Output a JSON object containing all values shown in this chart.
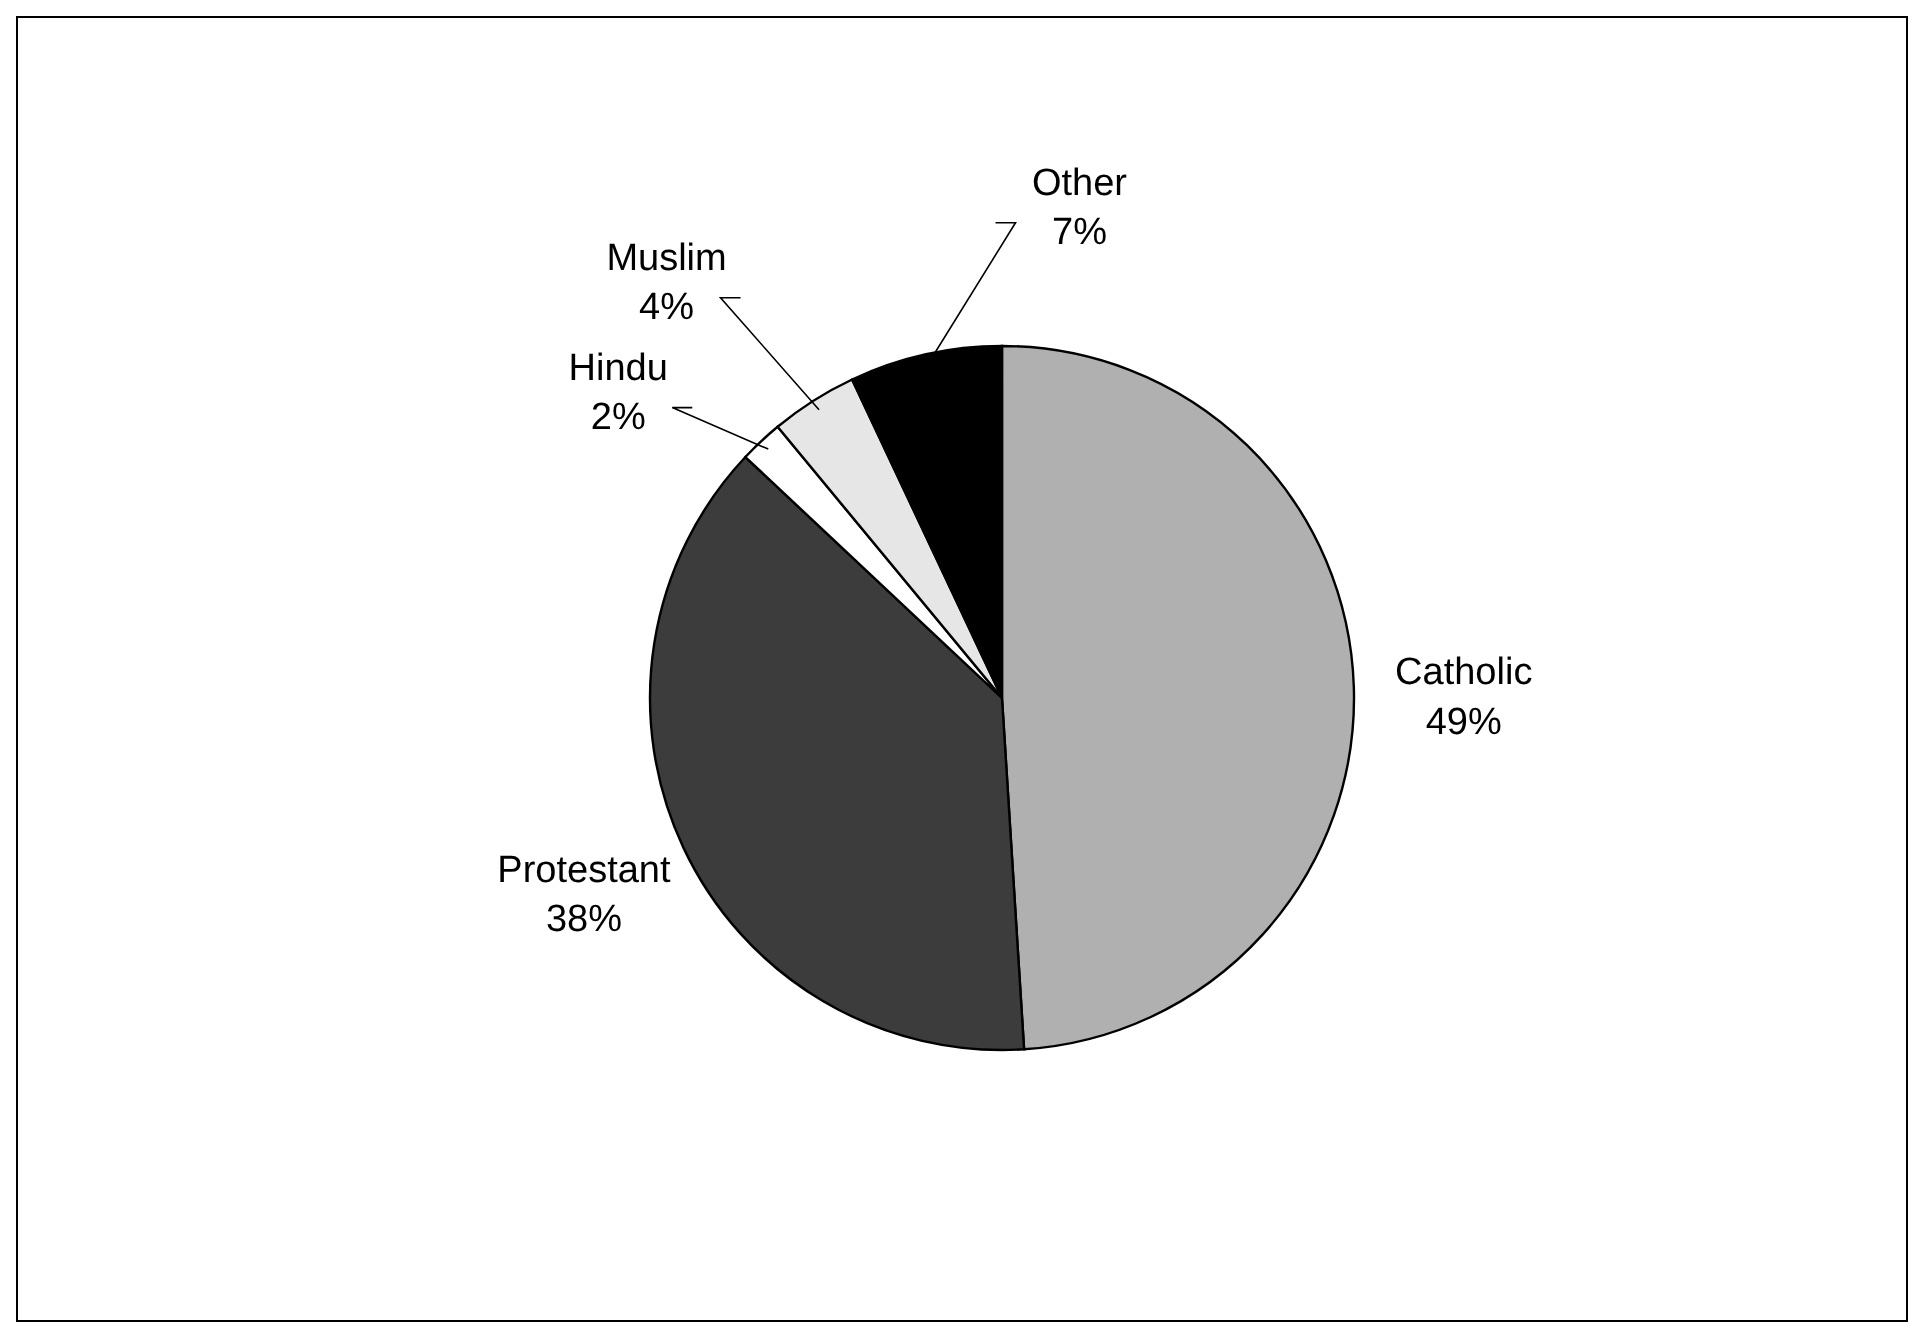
{
  "chart_data": {
    "type": "pie",
    "categories": [
      "Catholic",
      "Protestant",
      "Hindu",
      "Muslim",
      "Other"
    ],
    "values": [
      49,
      38,
      2,
      4,
      7
    ],
    "colors": [
      "#b0b0b0",
      "#3c3c3c",
      "#ffffff",
      "#e6e6e6",
      "#000000"
    ],
    "value_labels": [
      "49%",
      "38%",
      "2%",
      "4%",
      "7%"
    ]
  }
}
